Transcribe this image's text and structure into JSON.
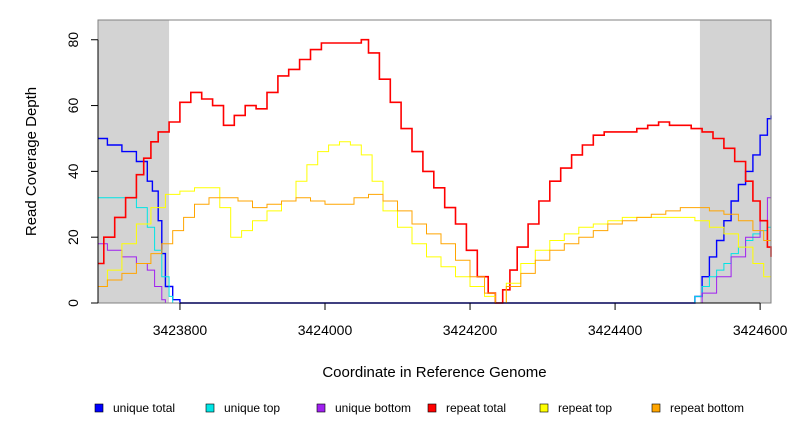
{
  "chart_data": {
    "type": "line",
    "title": "",
    "xlabel": "Coordinate in Reference Genome",
    "ylabel": "Read Coverage Depth",
    "xlim": [
      3423687,
      3424615
    ],
    "ylim": [
      0,
      86
    ],
    "x_ticks": [
      3423800,
      3424000,
      3424200,
      3424400,
      3424600
    ],
    "y_ticks": [
      0,
      20,
      40,
      60,
      80
    ],
    "shaded_regions": [
      [
        3423687,
        3423785
      ],
      [
        3424517,
        3424615
      ]
    ],
    "shade_color": "#d3d3d3",
    "legend_position": "bottom",
    "series": [
      {
        "name": "unique total",
        "color": "#0000ff",
        "x": [
          3423687,
          3423700,
          3423720,
          3423740,
          3423755,
          3423762,
          3423770,
          3423775,
          3423780,
          3423790,
          3423800,
          3424000,
          3424200,
          3424400,
          3424500,
          3424510,
          3424520,
          3424530,
          3424540,
          3424550,
          3424560,
          3424570,
          3424580,
          3424590,
          3424600,
          3424610,
          3424615
        ],
        "values": [
          50,
          48,
          46,
          43,
          37,
          34,
          25,
          15,
          5,
          1,
          0,
          0,
          0,
          0,
          0,
          2,
          8,
          14,
          19,
          25,
          31,
          36,
          40,
          45,
          51,
          56,
          57
        ]
      },
      {
        "name": "unique top",
        "color": "#00e5e5",
        "x": [
          3423687,
          3423700,
          3423720,
          3423740,
          3423755,
          3423765,
          3423775,
          3423785,
          3423790,
          3424500,
          3424510,
          3424520,
          3424530,
          3424540,
          3424550,
          3424560,
          3424570,
          3424580,
          3424590,
          3424600,
          3424610,
          3424615
        ],
        "values": [
          32,
          32,
          32,
          29,
          23,
          16,
          8,
          2,
          0,
          0,
          2,
          5,
          8,
          10,
          12,
          15,
          17,
          19,
          21,
          22,
          23,
          23
        ]
      },
      {
        "name": "unique bottom",
        "color": "#a020f0",
        "x": [
          3423687,
          3423700,
          3423720,
          3423740,
          3423755,
          3423765,
          3423775,
          3423780,
          3424500,
          3424520,
          3424540,
          3424560,
          3424580,
          3424600,
          3424610,
          3424615
        ],
        "values": [
          18,
          16,
          14,
          12,
          10,
          5,
          1,
          0,
          0,
          3,
          8,
          14,
          20,
          25,
          32,
          34
        ]
      },
      {
        "name": "repeat total",
        "color": "#ff0000",
        "x": [
          3423687,
          3423695,
          3423710,
          3423725,
          3423740,
          3423750,
          3423760,
          3423770,
          3423785,
          3423800,
          3423815,
          3423830,
          3423845,
          3423860,
          3423875,
          3423890,
          3423905,
          3423920,
          3423935,
          3423950,
          3423965,
          3423980,
          3423995,
          3424010,
          3424025,
          3424040,
          3424050,
          3424060,
          3424075,
          3424090,
          3424105,
          3424120,
          3424135,
          3424150,
          3424165,
          3424180,
          3424195,
          3424210,
          3424225,
          3424235,
          3424245,
          3424255,
          3424265,
          3424280,
          3424295,
          3424310,
          3424325,
          3424340,
          3424355,
          3424370,
          3424385,
          3424400,
          3424415,
          3424430,
          3424445,
          3424460,
          3424475,
          3424490,
          3424505,
          3424520,
          3424535,
          3424550,
          3424565,
          3424580,
          3424590,
          3424600,
          3424610,
          3424615
        ],
        "values": [
          12,
          20,
          26,
          32,
          39,
          44,
          49,
          52,
          55,
          61,
          64,
          62,
          60,
          54,
          57,
          60,
          59,
          64,
          69,
          71,
          74,
          77,
          79,
          79,
          79,
          79,
          80,
          76,
          68,
          61,
          53,
          46,
          40,
          35,
          29,
          24,
          16,
          8,
          3,
          0,
          4,
          10,
          17,
          24,
          31,
          37,
          41,
          45,
          48,
          51,
          52,
          52,
          52,
          53,
          54,
          55,
          54,
          54,
          53,
          52,
          50,
          47,
          43,
          37,
          31,
          25,
          17,
          14
        ]
      },
      {
        "name": "repeat top",
        "color": "#ffff00",
        "x": [
          3423687,
          3423700,
          3423720,
          3423740,
          3423760,
          3423780,
          3423800,
          3423820,
          3423840,
          3423855,
          3423870,
          3423885,
          3423900,
          3423920,
          3423940,
          3423960,
          3423975,
          3423990,
          3424005,
          3424020,
          3424035,
          3424050,
          3424065,
          3424080,
          3424100,
          3424120,
          3424140,
          3424160,
          3424180,
          3424200,
          3424220,
          3424235,
          3424250,
          3424270,
          3424290,
          3424310,
          3424330,
          3424350,
          3424370,
          3424390,
          3424410,
          3424430,
          3424450,
          3424470,
          3424490,
          3424510,
          3424530,
          3424550,
          3424570,
          3424590,
          3424605,
          3424615
        ],
        "values": [
          5,
          10,
          18,
          24,
          29,
          33,
          34,
          35,
          35,
          29,
          20,
          22,
          25,
          28,
          31,
          37,
          42,
          46,
          48,
          49,
          48,
          45,
          37,
          28,
          23,
          18,
          14,
          11,
          8,
          5,
          2,
          0,
          6,
          12,
          16,
          19,
          21,
          23,
          24,
          25,
          26,
          26,
          26,
          26,
          26,
          25,
          23,
          21,
          17,
          12,
          8,
          7
        ]
      },
      {
        "name": "repeat bottom",
        "color": "#ffa500",
        "x": [
          3423687,
          3423700,
          3423720,
          3423740,
          3423760,
          3423775,
          3423790,
          3423805,
          3423820,
          3423840,
          3423860,
          3423880,
          3423900,
          3423920,
          3423940,
          3423960,
          3423980,
          3424000,
          3424020,
          3424040,
          3424060,
          3424080,
          3424100,
          3424120,
          3424140,
          3424160,
          3424180,
          3424200,
          3424220,
          3424235,
          3424250,
          3424270,
          3424290,
          3424310,
          3424330,
          3424350,
          3424370,
          3424390,
          3424410,
          3424430,
          3424450,
          3424470,
          3424490,
          3424510,
          3424530,
          3424550,
          3424570,
          3424590,
          3424605,
          3424615
        ],
        "values": [
          5,
          7,
          9,
          12,
          15,
          18,
          22,
          26,
          30,
          32,
          32,
          31,
          29,
          30,
          31,
          32,
          31,
          30,
          30,
          32,
          33,
          31,
          28,
          24,
          21,
          18,
          13,
          8,
          3,
          0,
          5,
          9,
          13,
          16,
          18,
          20,
          22,
          24,
          25,
          26,
          27,
          28,
          29,
          29,
          28,
          27,
          25,
          22,
          19,
          16
        ]
      }
    ]
  }
}
